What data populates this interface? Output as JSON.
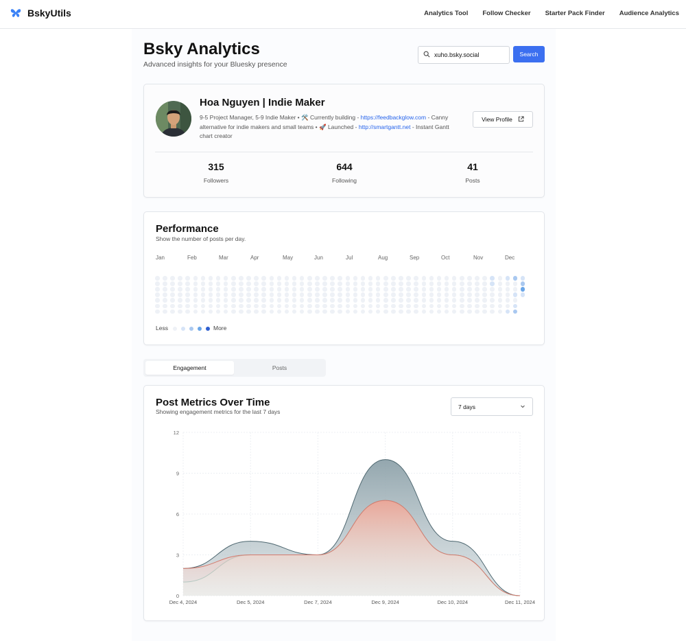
{
  "nav": {
    "brand": "BskyUtils",
    "links": [
      "Analytics Tool",
      "Follow Checker",
      "Starter Pack Finder",
      "Audience Analytics"
    ]
  },
  "header": {
    "title": "Bsky Analytics",
    "subtitle": "Advanced insights for your Bluesky presence",
    "search_value": "xuho.bsky.social",
    "search_label": "Search"
  },
  "profile": {
    "name": "Hoa Nguyen | Indie Maker",
    "bio_1": "9-5 Project Manager, 5-9 Indie Maker • 🛠️ Currently building - ",
    "link_1": "https://feedbackglow.com",
    "bio_2": " - Canny alternative for indie makers and small teams • 🚀 Launched - ",
    "link_2": "http://smartgantt.net",
    "bio_3": " - Instant Gantt chart creator",
    "view_label": "View Profile",
    "stats": [
      {
        "value": "315",
        "label": "Followers"
      },
      {
        "value": "644",
        "label": "Following"
      },
      {
        "value": "41",
        "label": "Posts"
      }
    ]
  },
  "performance": {
    "title": "Performance",
    "subtitle": "Show the number of posts per day.",
    "months": [
      "Jan",
      "Feb",
      "Mar",
      "Apr",
      "May",
      "Jun",
      "Jul",
      "Aug",
      "Sep",
      "Oct",
      "Nov",
      "Dec"
    ],
    "legend_less": "Less",
    "legend_more": "More",
    "colors": {
      "empty": "#eef1f6",
      "level1": "#d6e4f7",
      "level2": "#a9c8f0",
      "level3": "#6aa6e8",
      "level4": "#2f5fd0"
    }
  },
  "tabs": [
    "Engagement",
    "Posts"
  ],
  "metrics": {
    "title": "Post Metrics Over Time",
    "subtitle": "Showing engagement metrics for the last 7 days",
    "range": "7 days"
  },
  "chart_data": {
    "type": "area",
    "x": [
      "Dec 4, 2024",
      "Dec 5, 2024",
      "Dec 7, 2024",
      "Dec 9, 2024",
      "Dec 10, 2024",
      "Dec 11, 2024"
    ],
    "yticks": [
      0,
      3,
      6,
      9,
      12
    ],
    "ylim": [
      0,
      12
    ],
    "series": [
      {
        "values": [
          2,
          4,
          3,
          10,
          4,
          0
        ],
        "color": "#8fa3ab"
      },
      {
        "values": [
          2,
          3,
          3,
          7,
          3,
          0
        ],
        "color": "#f3a598"
      },
      {
        "values": [
          1,
          3,
          3,
          7,
          3,
          0
        ],
        "color": "#cdeee8"
      }
    ],
    "grid": true
  }
}
